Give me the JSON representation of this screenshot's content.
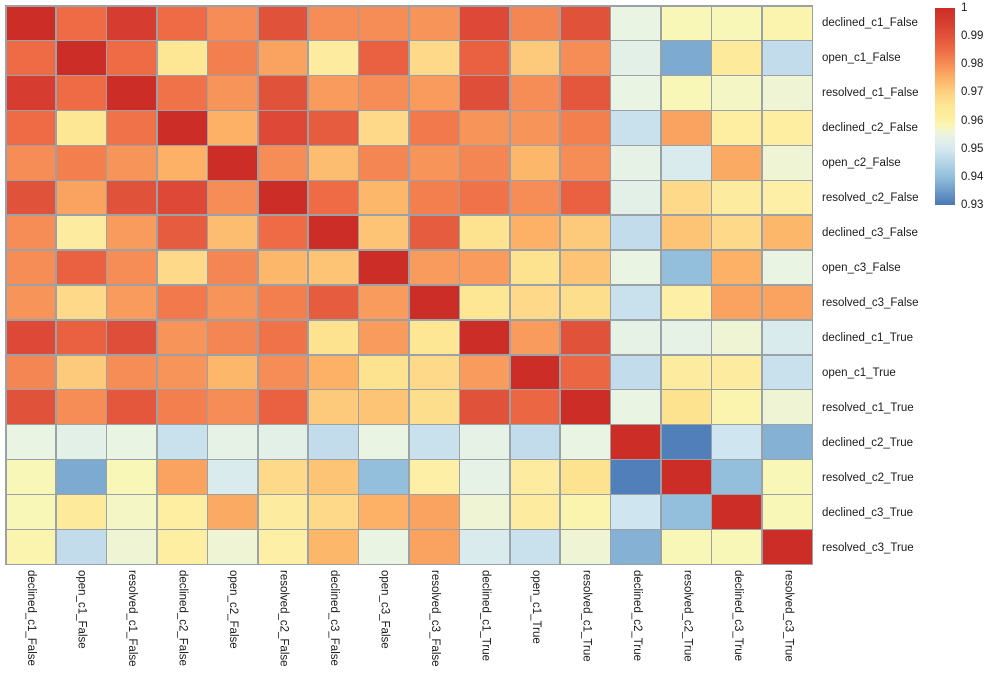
{
  "chart_data": {
    "type": "heatmap",
    "title": "",
    "xlabel": "",
    "ylabel": "",
    "legend_position": "right-colorbar",
    "grid": true,
    "grid_line_color": "#9aa2a8",
    "labels": [
      "declined_c1_False",
      "open_c1_False",
      "resolved_c1_False",
      "declined_c2_False",
      "open_c2_False",
      "resolved_c2_False",
      "declined_c3_False",
      "open_c3_False",
      "resolved_c3_False",
      "declined_c1_True",
      "open_c1_True",
      "resolved_c1_True",
      "declined_c2_True",
      "resolved_c2_True",
      "declined_c3_True",
      "resolved_c3_True"
    ],
    "matrix": [
      [
        1.0,
        0.985,
        0.995,
        0.985,
        0.98,
        0.99,
        0.98,
        0.98,
        0.979,
        0.992,
        0.981,
        0.99,
        0.955,
        0.958,
        0.958,
        0.959
      ],
      [
        0.985,
        1.0,
        0.985,
        0.965,
        0.982,
        0.977,
        0.962,
        0.987,
        0.968,
        0.987,
        0.971,
        0.98,
        0.953,
        0.937,
        0.963,
        0.947
      ],
      [
        0.995,
        0.985,
        1.0,
        0.984,
        0.979,
        0.99,
        0.978,
        0.98,
        0.978,
        0.991,
        0.98,
        0.989,
        0.955,
        0.958,
        0.957,
        0.956
      ],
      [
        0.985,
        0.965,
        0.984,
        1.0,
        0.975,
        0.992,
        0.988,
        0.968,
        0.983,
        0.979,
        0.979,
        0.982,
        0.948,
        0.977,
        0.961,
        0.961
      ],
      [
        0.98,
        0.982,
        0.979,
        0.975,
        1.0,
        0.98,
        0.973,
        0.981,
        0.979,
        0.981,
        0.974,
        0.98,
        0.954,
        0.951,
        0.976,
        0.956
      ],
      [
        0.99,
        0.977,
        0.99,
        0.992,
        0.98,
        1.0,
        0.985,
        0.974,
        0.982,
        0.984,
        0.98,
        0.987,
        0.953,
        0.968,
        0.962,
        0.96
      ],
      [
        0.98,
        0.962,
        0.978,
        0.988,
        0.973,
        0.985,
        1.0,
        0.972,
        0.988,
        0.966,
        0.975,
        0.971,
        0.947,
        0.972,
        0.968,
        0.974
      ],
      [
        0.98,
        0.987,
        0.98,
        0.968,
        0.981,
        0.974,
        0.972,
        1.0,
        0.978,
        0.978,
        0.966,
        0.972,
        0.955,
        0.94,
        0.975,
        0.955
      ],
      [
        0.979,
        0.968,
        0.978,
        0.983,
        0.979,
        0.982,
        0.988,
        0.978,
        1.0,
        0.965,
        0.968,
        0.967,
        0.948,
        0.96,
        0.977,
        0.977
      ],
      [
        0.992,
        0.987,
        0.991,
        0.979,
        0.981,
        0.984,
        0.966,
        0.978,
        0.965,
        1.0,
        0.978,
        0.99,
        0.954,
        0.954,
        0.956,
        0.951
      ],
      [
        0.981,
        0.971,
        0.98,
        0.979,
        0.974,
        0.98,
        0.975,
        0.966,
        0.968,
        0.978,
        1.0,
        0.986,
        0.947,
        0.962,
        0.962,
        0.948
      ],
      [
        0.99,
        0.98,
        0.989,
        0.982,
        0.98,
        0.987,
        0.971,
        0.972,
        0.967,
        0.99,
        0.986,
        1.0,
        0.955,
        0.966,
        0.959,
        0.956
      ],
      [
        0.955,
        0.953,
        0.955,
        0.948,
        0.954,
        0.953,
        0.947,
        0.955,
        0.948,
        0.954,
        0.947,
        0.955,
        1.0,
        0.931,
        0.949,
        0.938
      ],
      [
        0.958,
        0.937,
        0.958,
        0.977,
        0.951,
        0.968,
        0.972,
        0.94,
        0.96,
        0.954,
        0.962,
        0.966,
        0.931,
        1.0,
        0.94,
        0.958
      ],
      [
        0.958,
        0.963,
        0.957,
        0.961,
        0.976,
        0.962,
        0.968,
        0.975,
        0.977,
        0.956,
        0.962,
        0.959,
        0.949,
        0.94,
        1.0,
        0.958
      ],
      [
        0.959,
        0.947,
        0.956,
        0.961,
        0.956,
        0.96,
        0.974,
        0.955,
        0.977,
        0.951,
        0.948,
        0.956,
        0.938,
        0.958,
        0.958,
        1.0
      ]
    ],
    "colorbar": {
      "min": 0.93,
      "max": 1.0,
      "ticks": [
        "1",
        "0.99",
        "0.98",
        "0.97",
        "0.96",
        "0.95",
        "0.94",
        "0.93"
      ]
    },
    "colormap_name": "RdYlBu_r",
    "colormap_stops": [
      [
        0.93,
        "#4a78b5"
      ],
      [
        0.94,
        "#93bfdc"
      ],
      [
        0.95,
        "#d6e9f1"
      ],
      [
        0.955,
        "#eaf4e2"
      ],
      [
        0.958,
        "#f9f7b8"
      ],
      [
        0.96,
        "#fdf0a6"
      ],
      [
        0.965,
        "#fde794"
      ],
      [
        0.97,
        "#fdd081"
      ],
      [
        0.975,
        "#fcb166"
      ],
      [
        0.98,
        "#f68d56"
      ],
      [
        0.985,
        "#ee6b45"
      ],
      [
        0.99,
        "#e1523a"
      ],
      [
        0.995,
        "#d63c2f"
      ],
      [
        1.0,
        "#cc2e27"
      ]
    ]
  }
}
